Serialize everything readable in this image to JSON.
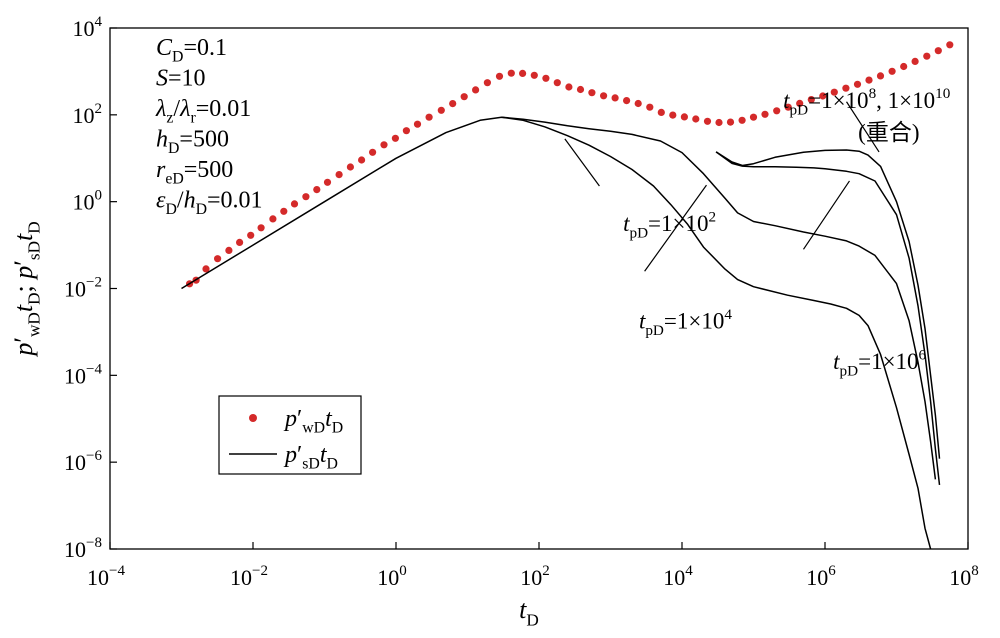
{
  "chart_data": {
    "type": "line",
    "xscale": "log",
    "yscale": "log",
    "xlim": [
      0.0001,
      100000000
    ],
    "ylim": [
      1e-08,
      10000
    ],
    "x_ticks": [
      {
        "mant": "10",
        "exp": "−4"
      },
      {
        "mant": "10",
        "exp": "−2"
      },
      {
        "mant": "10",
        "exp": "0"
      },
      {
        "mant": "10",
        "exp": "2"
      },
      {
        "mant": "10",
        "exp": "4"
      },
      {
        "mant": "10",
        "exp": "6"
      },
      {
        "mant": "10",
        "exp": "8"
      }
    ],
    "y_ticks": [
      {
        "mant": "10",
        "exp": "4"
      },
      {
        "mant": "10",
        "exp": "2"
      },
      {
        "mant": "10",
        "exp": "0"
      },
      {
        "mant": "10",
        "exp": "−2"
      },
      {
        "mant": "10",
        "exp": "−4"
      },
      {
        "mant": "10",
        "exp": "−6"
      },
      {
        "mant": "10",
        "exp": "−8"
      }
    ],
    "xlabel": {
      "main": "t",
      "sub": "D"
    },
    "ylabel": {
      "parts": [
        {
          "t": "p",
          "it": true
        },
        {
          "t": "′"
        },
        {
          "t": "wD",
          "sub": true
        },
        {
          "t": "t",
          "it": true
        },
        {
          "t": "D",
          "sub": true
        },
        {
          "t": "; "
        },
        {
          "t": "p",
          "it": true
        },
        {
          "t": "′"
        },
        {
          "t": "sD",
          "sub": true
        },
        {
          "t": "t",
          "it": true
        },
        {
          "t": "D",
          "sub": true
        }
      ]
    },
    "parameters": [
      [
        {
          "t": "C",
          "it": true
        },
        {
          "t": "D",
          "sub": true
        },
        {
          "t": "=0.1"
        }
      ],
      [
        {
          "t": "S",
          "it": true
        },
        {
          "t": "=10"
        }
      ],
      [
        {
          "t": "λ",
          "it": true
        },
        {
          "t": "z",
          "sub": true
        },
        {
          "t": "/"
        },
        {
          "t": "λ",
          "it": true
        },
        {
          "t": "r",
          "sub": true
        },
        {
          "t": "=0.01"
        }
      ],
      [
        {
          "t": "h",
          "it": true
        },
        {
          "t": "D",
          "sub": true
        },
        {
          "t": "=500"
        }
      ],
      [
        {
          "t": "r",
          "it": true
        },
        {
          "t": "eD",
          "sub": true
        },
        {
          "t": "=500"
        }
      ],
      [
        {
          "t": "ε",
          "it": true
        },
        {
          "t": "D",
          "sub": true
        },
        {
          "t": "/"
        },
        {
          "t": "h",
          "it": true
        },
        {
          "t": "D",
          "sub": true
        },
        {
          "t": "=0.01"
        }
      ]
    ],
    "legend": {
      "placement": "lower-left",
      "entries": [
        {
          "marker": "dot",
          "color": "#d42a2a",
          "parts": [
            {
              "t": "p",
              "it": true
            },
            {
              "t": "′"
            },
            {
              "t": "wD",
              "sub": true
            },
            {
              "t": "t",
              "it": true
            },
            {
              "t": "D",
              "sub": true
            }
          ]
        },
        {
          "marker": "line",
          "color": "#000000",
          "parts": [
            {
              "t": "p",
              "it": true
            },
            {
              "t": "′"
            },
            {
              "t": "sD",
              "sub": true
            },
            {
              "t": "t",
              "it": true
            },
            {
              "t": "D",
              "sub": true
            }
          ]
        }
      ]
    },
    "series": [
      {
        "kind": "wellbore-dots",
        "color": "#d42a2a",
        "x": [
          0.0013,
          0.0016,
          0.0022,
          0.0032,
          0.0046,
          0.0065,
          0.0093,
          0.013,
          0.019,
          0.027,
          0.038,
          0.055,
          0.078,
          0.11,
          0.16,
          0.23,
          0.33,
          0.47,
          0.68,
          0.98,
          1.4,
          2,
          2.9,
          4.3,
          6.2,
          9,
          13,
          19,
          28,
          41,
          59,
          86,
          125,
          180,
          262,
          380,
          550,
          800,
          1160,
          1680,
          2440,
          3540,
          5130,
          7440,
          10800,
          15600,
          22700,
          32900,
          47700,
          69200,
          100000,
          145000,
          211000,
          306000,
          443000,
          643000,
          933000,
          1350000,
          1960000,
          2850000,
          4130000,
          5980000,
          8680000,
          12600000,
          18200000,
          26500000,
          38400000,
          55700000
        ],
        "y": [
          0.0128,
          0.0155,
          0.0283,
          0.0486,
          0.0753,
          0.115,
          0.168,
          0.25,
          0.4,
          0.6,
          0.89,
          1.3,
          1.9,
          2.8,
          4.2,
          6.3,
          9.1,
          13.7,
          20.4,
          28.8,
          43.2,
          61,
          88,
          127,
          181,
          262,
          376,
          551,
          770,
          910,
          900,
          816,
          695,
          550,
          438,
          383,
          323,
          274,
          246,
          213,
          182,
          150,
          114,
          98.6,
          89.5,
          80,
          71,
          66.5,
          67.9,
          74.8,
          88,
          103,
          124,
          150,
          183,
          224,
          272,
          333,
          410,
          506,
          630,
          790,
          1005,
          1300,
          1700,
          2240,
          3000,
          4100
        ]
      },
      {
        "kind": "curve",
        "label": [
          {
            "t": "t",
            "it": true
          },
          {
            "t": "pD",
            "sub": true
          },
          {
            "t": "=1×10"
          },
          {
            "t": "2",
            "sup": true
          }
        ],
        "x": [
          0.001,
          0.01,
          0.1,
          1,
          5,
          15,
          30,
          60,
          120,
          250,
          500,
          1000,
          2000,
          4000,
          7000,
          12000,
          20000,
          40000,
          60000,
          100000,
          300000,
          700000,
          1200000,
          2000000,
          3000000,
          4000000,
          6000000,
          10000000,
          15000000,
          20000000,
          25000000,
          30000000
        ],
        "y": [
          0.01,
          0.1,
          1,
          10,
          39,
          75,
          88,
          75,
          53,
          33,
          20,
          11,
          5.5,
          2.3,
          0.85,
          0.3,
          0.09,
          0.028,
          0.016,
          0.011,
          0.007,
          0.0053,
          0.0044,
          0.0035,
          0.0024,
          0.0014,
          0.0003,
          1.8e-05,
          1.5e-06,
          2.5e-07,
          3e-08,
          1e-08
        ]
      },
      {
        "kind": "curve",
        "label": [
          {
            "t": "t",
            "it": true
          },
          {
            "t": "pD",
            "sub": true
          },
          {
            "t": "=1×10"
          },
          {
            "t": "4",
            "sup": true
          }
        ],
        "x": [
          30,
          60,
          120,
          250,
          500,
          1000,
          2000,
          5000,
          10000,
          20000,
          40000,
          60000,
          100000,
          200000,
          500000,
          1000000,
          2000000,
          3000000,
          5000000,
          10000000,
          15000000,
          20000000,
          25000000,
          30000000,
          35000000
        ],
        "y": [
          88,
          79,
          68,
          56,
          48,
          42,
          35.5,
          25,
          13.5,
          4.4,
          1.2,
          0.55,
          0.35,
          0.28,
          0.2,
          0.16,
          0.125,
          0.095,
          0.058,
          0.013,
          0.0018,
          0.0002,
          2.5e-05,
          3e-06,
          4e-07
        ]
      },
      {
        "kind": "curve",
        "label": [
          {
            "t": "t",
            "it": true
          },
          {
            "t": "pD",
            "sub": true
          },
          {
            "t": "=1×10"
          },
          {
            "t": "6",
            "sup": true
          }
        ],
        "x": [
          30000,
          50000,
          70000,
          100000,
          200000,
          400000,
          700000,
          1000000,
          2000000,
          3000000,
          5000000,
          10000000,
          15000000,
          20000000,
          25000000,
          30000000,
          35000000,
          40000000
        ],
        "y": [
          14,
          7.6,
          6.6,
          6.4,
          6.4,
          6.2,
          6.0,
          5.7,
          5.0,
          4.4,
          3.0,
          0.5,
          0.05,
          0.004,
          0.0003,
          2.5e-05,
          2e-06,
          3e-07
        ]
      },
      {
        "kind": "curve",
        "label": [
          {
            "t": "t",
            "it": true
          },
          {
            "t": "pD",
            "sub": true
          },
          {
            "t": "=1×10"
          },
          {
            "t": "8",
            "sup": true
          },
          {
            "t": ", 1×10"
          },
          {
            "t": "10",
            "sup": true
          },
          {
            "t": " (重合)",
            "br": true
          }
        ],
        "x": [
          30000,
          50000,
          70000,
          100000,
          200000,
          500000,
          1000000,
          2000000,
          3000000,
          4000000,
          6000000,
          10000000,
          15000000,
          20000000,
          25000000,
          30000000,
          35000000,
          40000000
        ],
        "y": [
          14,
          8.2,
          6.8,
          7.5,
          10.5,
          13.8,
          15.2,
          15.5,
          14.5,
          11.8,
          6.5,
          1.0,
          0.12,
          0.012,
          0.0012,
          0.0001,
          1.2e-05,
          1.2e-06
        ]
      }
    ],
    "annotations": [
      {
        "target": 1,
        "tx": 1500,
        "ty": 0.21,
        "lx0": 700,
        "ly0": 2.3,
        "lx1": 230,
        "ly1": 28
      },
      {
        "target": 2,
        "tx": 2500,
        "ty": 0.0012,
        "lx0": 3000,
        "ly0": 0.025,
        "lx1": 22000,
        "ly1": 2.4
      },
      {
        "target": 3,
        "tx": 1300000,
        "ty": 0.00014,
        "lx0": 500000,
        "ly0": 0.08,
        "lx1": 2200000,
        "ly1": 3.0
      },
      {
        "target": 4,
        "tx": 260000,
        "ty": 145,
        "lx0": 2000000,
        "ly0": 200,
        "lx1": 5700000,
        "ly1": 14
      }
    ]
  }
}
